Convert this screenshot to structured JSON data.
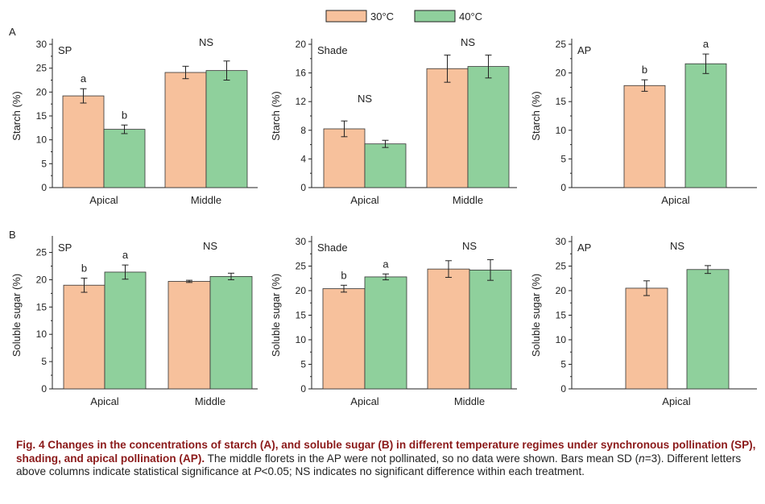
{
  "legend": [
    {
      "label": "30°C",
      "color": "#f7c19c"
    },
    {
      "label": "40°C",
      "color": "#8fd09c"
    }
  ],
  "rows": [
    {
      "label": "A",
      "ylabel": "Starch (%)"
    },
    {
      "label": "B",
      "ylabel": "Soluble sugar (%)"
    }
  ],
  "chart_data": [
    {
      "type": "bar",
      "row": 0,
      "col": 0,
      "corner_label": "SP",
      "ylabel": "Starch (%)",
      "ylim": [
        0,
        30
      ],
      "yticks": [
        0,
        5,
        10,
        15,
        20,
        25,
        30
      ],
      "categories": [
        "Apical",
        "Middle"
      ],
      "series": [
        {
          "name": "30°C",
          "values": [
            19.2,
            24.1
          ],
          "errors": [
            1.5,
            1.3
          ]
        },
        {
          "name": "40°C",
          "values": [
            12.2,
            24.5
          ],
          "errors": [
            0.9,
            2.0
          ]
        }
      ],
      "letters": [
        [
          "a",
          "b"
        ],
        [
          "NS"
        ]
      ]
    },
    {
      "type": "bar",
      "row": 0,
      "col": 1,
      "corner_label": "Shade",
      "ylabel": "Starch (%)",
      "ylim": [
        0,
        20
      ],
      "yticks": [
        0,
        4,
        8,
        12,
        16,
        20
      ],
      "categories": [
        "Apical",
        "Middle"
      ],
      "series": [
        {
          "name": "30°C",
          "values": [
            8.2,
            16.6
          ],
          "errors": [
            1.1,
            1.9
          ]
        },
        {
          "name": "40°C",
          "values": [
            6.1,
            16.9
          ],
          "errors": [
            0.5,
            1.6
          ]
        }
      ],
      "letters": [
        [
          "NS"
        ],
        [
          "NS"
        ]
      ]
    },
    {
      "type": "bar",
      "row": 0,
      "col": 2,
      "corner_label": "AP",
      "ylabel": "Starch (%)",
      "ylim": [
        0,
        25
      ],
      "yticks": [
        0,
        5,
        10,
        15,
        20,
        25
      ],
      "categories": [
        "Apical"
      ],
      "series": [
        {
          "name": "30°C",
          "values": [
            17.8
          ],
          "errors": [
            1.0
          ]
        },
        {
          "name": "40°C",
          "values": [
            21.6
          ],
          "errors": [
            1.7
          ]
        }
      ],
      "letters": [
        [
          "b",
          "a"
        ]
      ]
    },
    {
      "type": "bar",
      "row": 1,
      "col": 0,
      "corner_label": "SP",
      "ylabel": "Soluble sugar (%)",
      "ylim": [
        0,
        27
      ],
      "yticks": [
        0,
        5,
        10,
        15,
        20,
        25
      ],
      "categories": [
        "Apical",
        "Middle"
      ],
      "series": [
        {
          "name": "30°C",
          "values": [
            19.0,
            19.7
          ],
          "errors": [
            1.3,
            0.2
          ]
        },
        {
          "name": "40°C",
          "values": [
            21.4,
            20.6
          ],
          "errors": [
            1.3,
            0.6
          ]
        }
      ],
      "letters": [
        [
          "b",
          "a"
        ],
        [
          "NS"
        ]
      ]
    },
    {
      "type": "bar",
      "row": 1,
      "col": 1,
      "corner_label": "Shade",
      "ylabel": "Soluble sugar (%)",
      "ylim": [
        0,
        30
      ],
      "yticks": [
        0,
        5,
        10,
        15,
        20,
        25,
        30
      ],
      "categories": [
        "Apical",
        "Middle"
      ],
      "series": [
        {
          "name": "30°C",
          "values": [
            20.4,
            24.4
          ],
          "errors": [
            0.7,
            1.7
          ]
        },
        {
          "name": "40°C",
          "values": [
            22.8,
            24.2
          ],
          "errors": [
            0.6,
            2.1
          ]
        }
      ],
      "letters": [
        [
          "b",
          "a"
        ],
        [
          "NS"
        ]
      ]
    },
    {
      "type": "bar",
      "row": 1,
      "col": 2,
      "corner_label": "AP",
      "ylabel": "Soluble sugar (%)",
      "ylim": [
        0,
        30
      ],
      "yticks": [
        0,
        5,
        10,
        15,
        20,
        25,
        30
      ],
      "categories": [
        "Apical"
      ],
      "series": [
        {
          "name": "30°C",
          "values": [
            20.5
          ],
          "errors": [
            1.5
          ]
        },
        {
          "name": "40°C",
          "values": [
            24.3
          ],
          "errors": [
            0.8
          ]
        }
      ],
      "letters": [
        [
          "NS"
        ]
      ]
    }
  ],
  "caption": {
    "bold": "Fig. 4  Changes in the concentrations of starch (A), and soluble sugar (B) in different temperature regimes under synchronous pollination (SP), shading, and apical pollination (AP).",
    "t1": "  The middle florets in the AP were not pollinated, so no data were shown.  Bars mean SD (",
    "t2": "n",
    "t3": "=3).  Different letters above columns indicate statistical significance at ",
    "t4": "P",
    "t5": "<0.05; NS indicates no significant difference within each treatment."
  }
}
